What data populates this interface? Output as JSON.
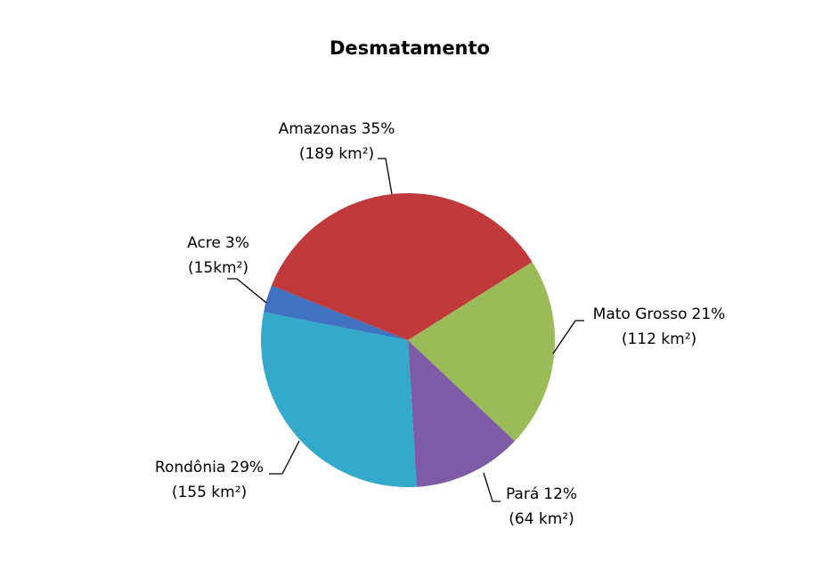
{
  "chart_data": {
    "type": "pie",
    "title": "Desmatamento",
    "categories": [
      "Amazonas",
      "Mato Grosso",
      "Pará",
      "Rondônia",
      "Acre"
    ],
    "values": [
      35,
      21,
      12,
      29,
      3
    ],
    "value_labels": [
      "35%",
      "21%",
      "12%",
      "29%",
      "3%"
    ],
    "area_labels": [
      "(189 km²)",
      "(112 km²)",
      "(64 km²)",
      "(155 km²)",
      "(15km²)"
    ],
    "colors": [
      "#c0393b",
      "#9bbb59",
      "#7d5ba6",
      "#33a9cc",
      "#3f72c0"
    ]
  }
}
